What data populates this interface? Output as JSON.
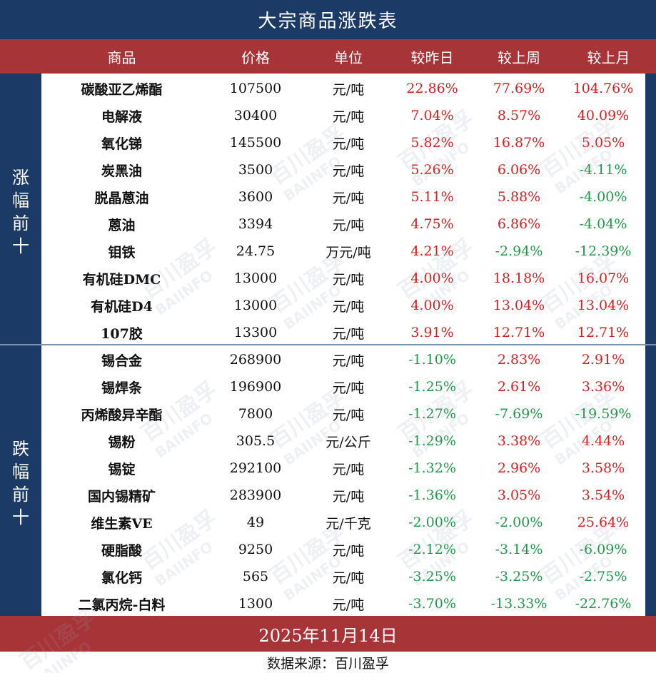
{
  "title": "大宗商品涨跌表",
  "headers": [
    "商品",
    "价格",
    "单位",
    "较昨日",
    "较上周",
    "较上月"
  ],
  "groups": {
    "top": "涨幅前十",
    "bottom": "跌幅前十"
  },
  "rows": [
    {
      "name": "碳酸亚乙烯酯",
      "price": "107500",
      "unit": "元/吨",
      "day": "22.86%",
      "week": "77.69%",
      "month": "104.76%"
    },
    {
      "name": "电解液",
      "price": "30400",
      "unit": "元/吨",
      "day": "7.04%",
      "week": "8.57%",
      "month": "40.09%"
    },
    {
      "name": "氧化锑",
      "price": "145500",
      "unit": "元/吨",
      "day": "5.82%",
      "week": "16.87%",
      "month": "5.05%"
    },
    {
      "name": "炭黑油",
      "price": "3500",
      "unit": "元/吨",
      "day": "5.26%",
      "week": "6.06%",
      "month": "-4.11%"
    },
    {
      "name": "脱晶蒽油",
      "price": "3600",
      "unit": "元/吨",
      "day": "5.11%",
      "week": "5.88%",
      "month": "-4.00%"
    },
    {
      "name": "蒽油",
      "price": "3394",
      "unit": "元/吨",
      "day": "4.75%",
      "week": "6.86%",
      "month": "-4.04%"
    },
    {
      "name": "钼铁",
      "price": "24.75",
      "unit": "万元/吨",
      "day": "4.21%",
      "week": "-2.94%",
      "month": "-12.39%"
    },
    {
      "name": "有机硅DMC",
      "price": "13000",
      "unit": "元/吨",
      "day": "4.00%",
      "week": "18.18%",
      "month": "16.07%"
    },
    {
      "name": "有机硅D4",
      "price": "13000",
      "unit": "元/吨",
      "day": "4.00%",
      "week": "13.04%",
      "month": "13.04%"
    },
    {
      "name": "107胶",
      "price": "13300",
      "unit": "元/吨",
      "day": "3.91%",
      "week": "12.71%",
      "month": "12.71%"
    },
    {
      "name": "锡合金",
      "price": "268900",
      "unit": "元/吨",
      "day": "-1.10%",
      "week": "2.83%",
      "month": "2.91%"
    },
    {
      "name": "锡焊条",
      "price": "196900",
      "unit": "元/吨",
      "day": "-1.25%",
      "week": "2.61%",
      "month": "3.36%"
    },
    {
      "name": "丙烯酸异辛酯",
      "price": "7800",
      "unit": "元/吨",
      "day": "-1.27%",
      "week": "-7.69%",
      "month": "-19.59%"
    },
    {
      "name": "锡粉",
      "price": "305.5",
      "unit": "元/公斤",
      "day": "-1.29%",
      "week": "3.38%",
      "month": "4.44%"
    },
    {
      "name": "锡锭",
      "price": "292100",
      "unit": "元/吨",
      "day": "-1.32%",
      "week": "2.96%",
      "month": "3.58%"
    },
    {
      "name": "国内锡精矿",
      "price": "283900",
      "unit": "元/吨",
      "day": "-1.36%",
      "week": "3.05%",
      "month": "3.54%"
    },
    {
      "name": "维生素VE",
      "price": "49",
      "unit": "元/千克",
      "day": "-2.00%",
      "week": "-2.00%",
      "month": "25.64%"
    },
    {
      "name": "硬脂酸",
      "price": "9250",
      "unit": "元/吨",
      "day": "-2.12%",
      "week": "-3.14%",
      "month": "-6.09%"
    },
    {
      "name": "氯化钙",
      "price": "565",
      "unit": "元/吨",
      "day": "-3.25%",
      "week": "-3.25%",
      "month": "-2.75%"
    },
    {
      "name": "二氯丙烷-白料",
      "price": "1300",
      "unit": "元/吨",
      "day": "-3.70%",
      "week": "-13.33%",
      "month": "-22.76%"
    }
  ],
  "date": "2025年11月14日",
  "source": "数据来源：百川盈孚",
  "watermark": {
    "cn": "百川盈孚",
    "en": "BAIINFO"
  },
  "colors": {
    "navy": "#1c3a66",
    "red_header": "#a73437",
    "up": "#d81e1e",
    "down": "#1f9a4a"
  }
}
